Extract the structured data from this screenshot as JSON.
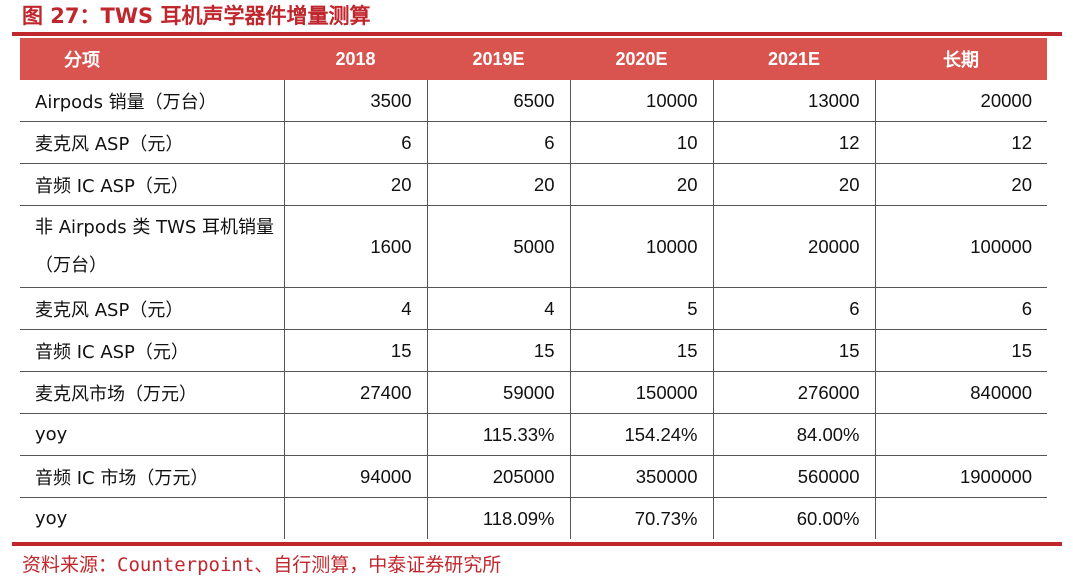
{
  "title": "图 27：TWS 耳机声学器件增量测算",
  "colors": {
    "accent": "#c0272d",
    "header_bg": "#d9534f",
    "header_text": "#ffffff"
  },
  "table": {
    "headers": [
      "分项",
      "2018",
      "2019E",
      "2020E",
      "2021E",
      "长期"
    ],
    "rows": [
      {
        "label": "Airpods 销量（万台）",
        "values": [
          "3500",
          "6500",
          "10000",
          "13000",
          "20000"
        ]
      },
      {
        "label": "麦克风 ASP（元）",
        "values": [
          "6",
          "6",
          "10",
          "12",
          "12"
        ]
      },
      {
        "label": "音频 IC ASP（元）",
        "values": [
          "20",
          "20",
          "20",
          "20",
          "20"
        ]
      },
      {
        "label": "非 Airpods 类 TWS 耳机销量（万台）",
        "values": [
          "1600",
          "5000",
          "10000",
          "20000",
          "100000"
        ]
      },
      {
        "label": "麦克风 ASP（元）",
        "values": [
          "4",
          "4",
          "5",
          "6",
          "6"
        ]
      },
      {
        "label": "音频 IC ASP（元）",
        "values": [
          "15",
          "15",
          "15",
          "15",
          "15"
        ]
      },
      {
        "label": "麦克风市场（万元）",
        "values": [
          "27400",
          "59000",
          "150000",
          "276000",
          "840000"
        ]
      },
      {
        "label": "yoy",
        "values": [
          "",
          "115.33%",
          "154.24%",
          "84.00%",
          ""
        ]
      },
      {
        "label": "音频 IC 市场（万元）",
        "values": [
          "94000",
          "205000",
          "350000",
          "560000",
          "1900000"
        ]
      },
      {
        "label": "yoy",
        "values": [
          "",
          "118.09%",
          "70.73%",
          "60.00%",
          ""
        ]
      }
    ]
  },
  "source": "资料来源：Counterpoint、自行测算，中泰证券研究所"
}
